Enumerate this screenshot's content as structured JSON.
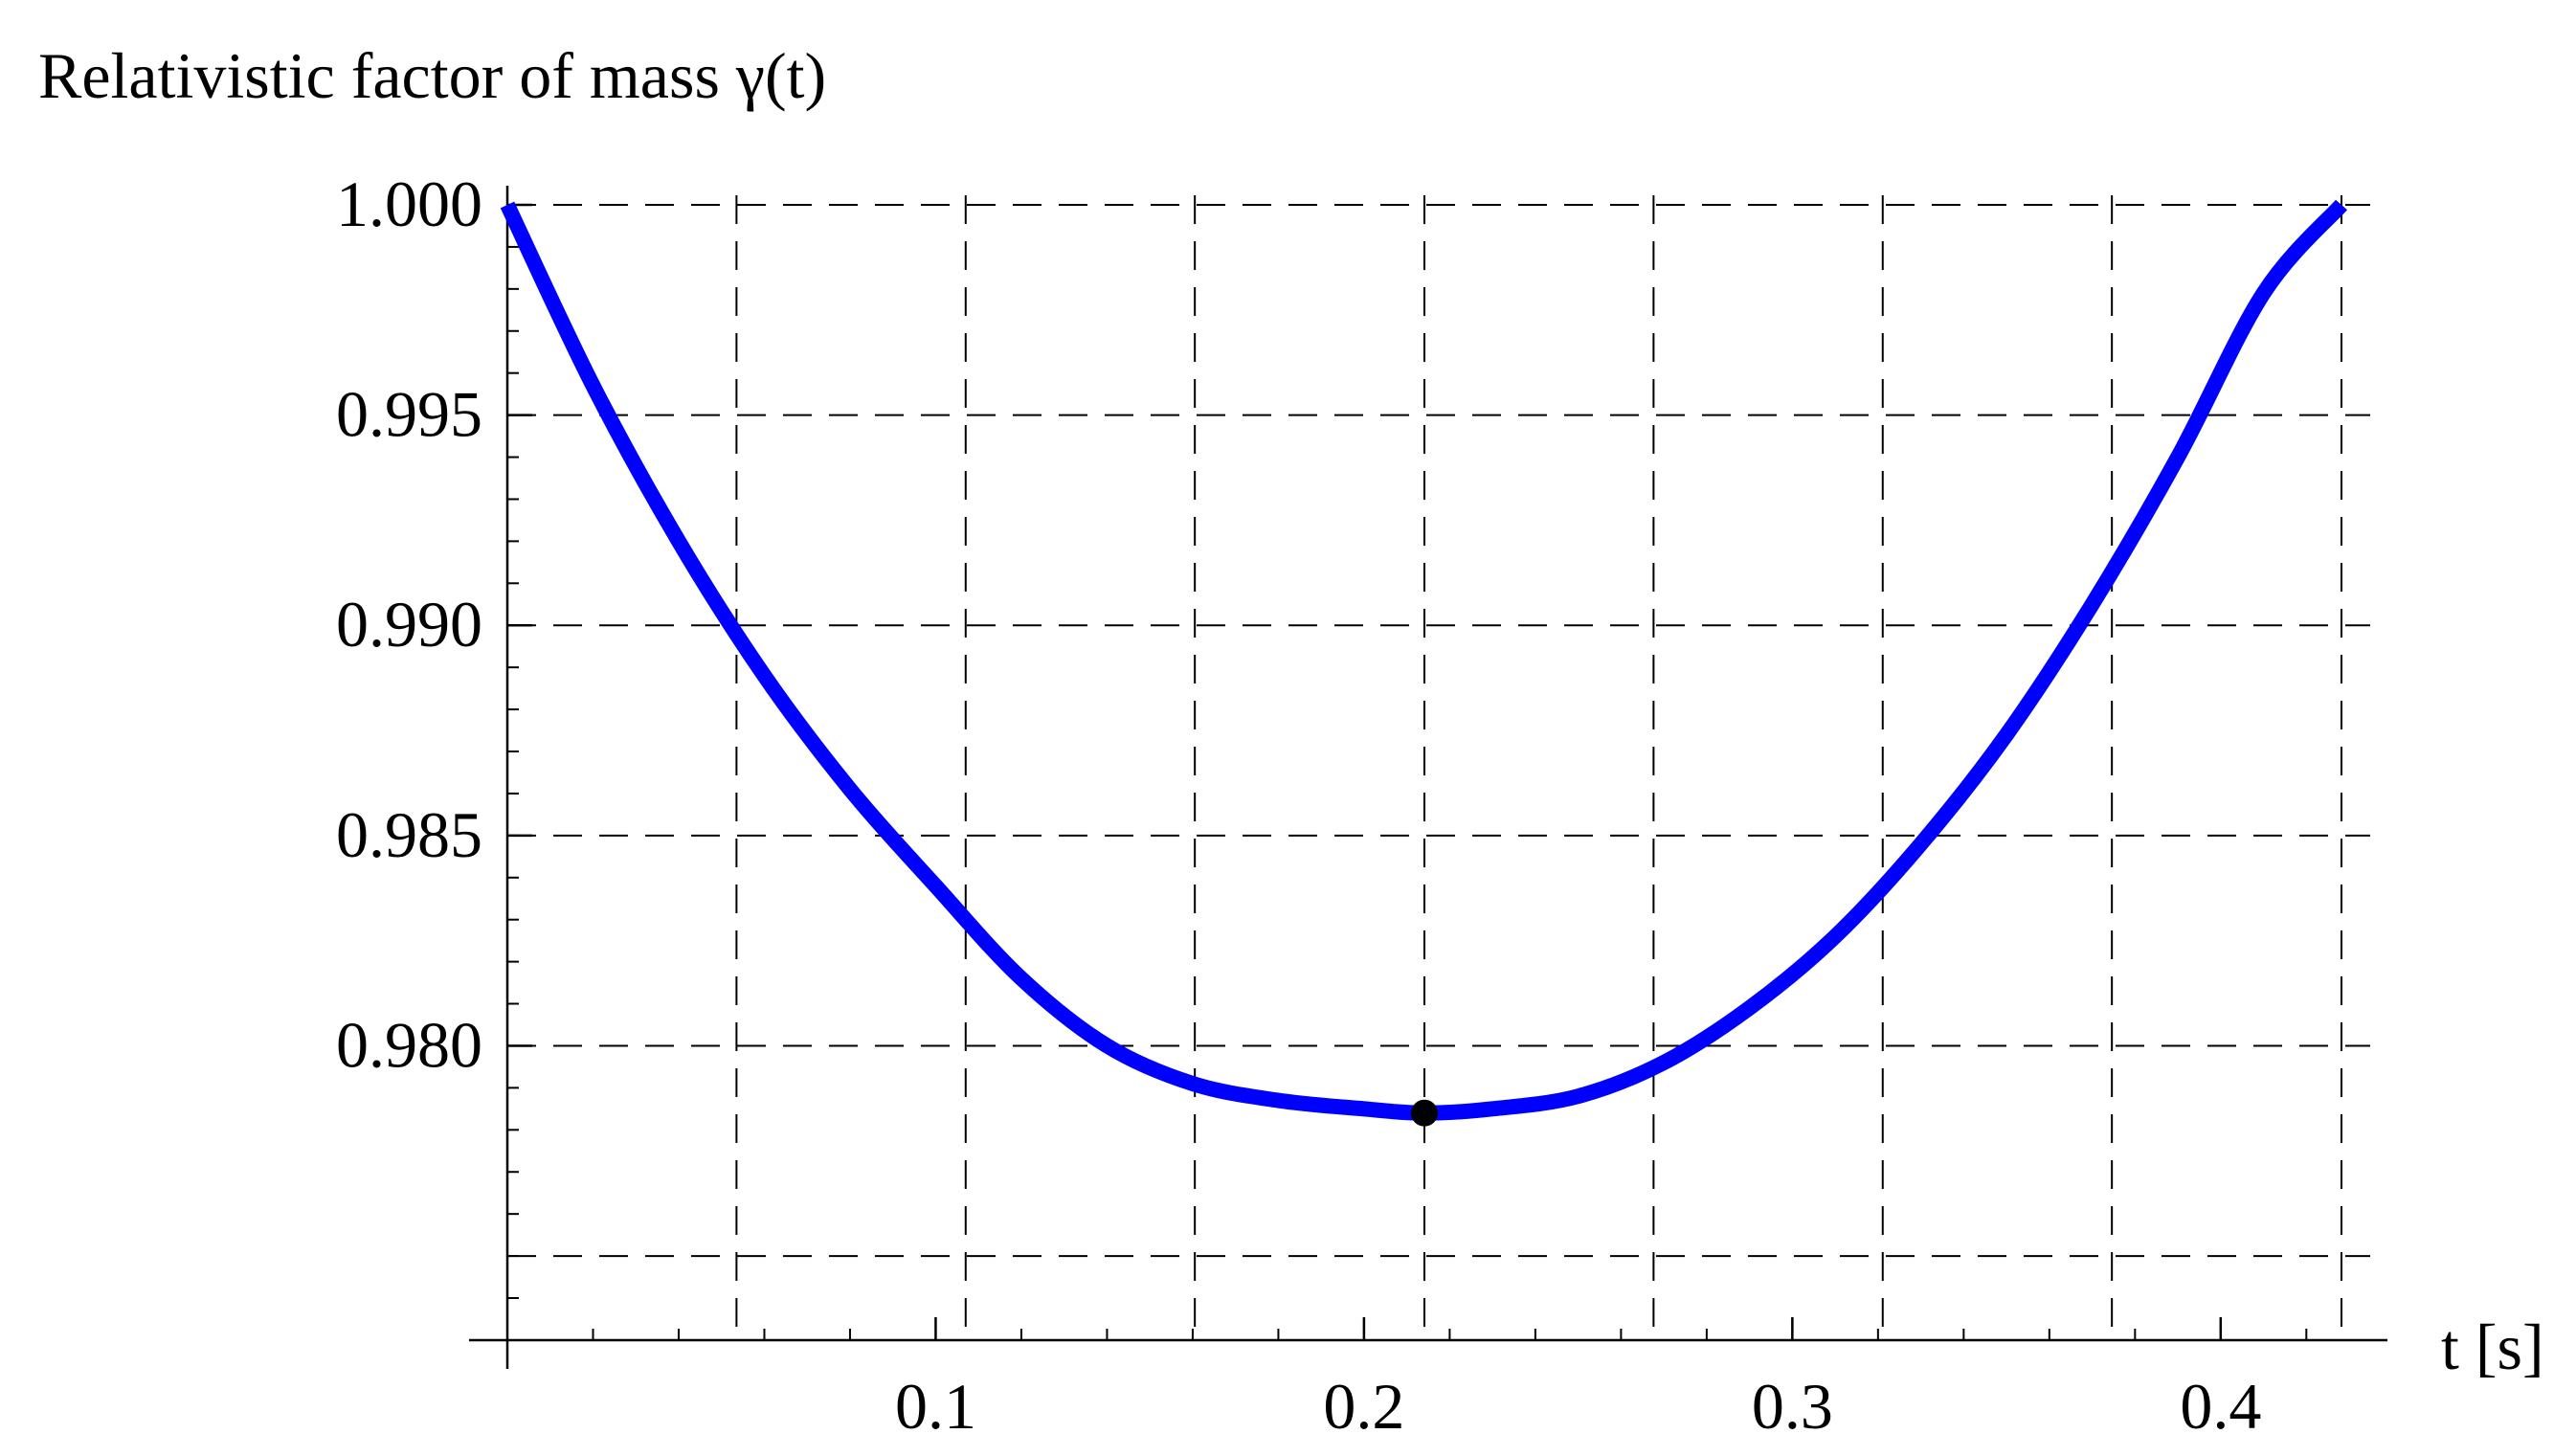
{
  "chart_data": {
    "type": "line",
    "ylabel": "Relativistic factor of mass γ(t)",
    "xlabel": "t [s]",
    "xlim": [
      0.0,
      0.4282
    ],
    "ylim": [
      0.974,
      1.0
    ],
    "grid": true,
    "x_ticks": [
      {
        "value": 0.1,
        "label": "0.1"
      },
      {
        "value": 0.2,
        "label": "0.2"
      },
      {
        "value": 0.3,
        "label": "0.3"
      },
      {
        "value": 0.4,
        "label": "0.4"
      }
    ],
    "y_ticks": [
      {
        "value": 1.0,
        "label": "1.000"
      },
      {
        "value": 0.995,
        "label": "0.995"
      },
      {
        "value": 0.99,
        "label": "0.990"
      },
      {
        "value": 0.985,
        "label": "0.985"
      },
      {
        "value": 0.98,
        "label": "0.980"
      }
    ],
    "grid_x": [
      0.0535,
      0.107,
      0.1605,
      0.2141,
      0.2676,
      0.3211,
      0.3746,
      0.4282
    ],
    "grid_y": [
      1.0,
      0.995,
      0.99,
      0.985,
      0.98,
      0.975
    ],
    "series": [
      {
        "color": "#0000ff",
        "x": [
          0.0,
          0.02,
          0.04,
          0.06,
          0.08,
          0.1,
          0.12,
          0.14,
          0.16,
          0.18,
          0.2,
          0.2141,
          0.23,
          0.25,
          0.27,
          0.29,
          0.31,
          0.33,
          0.35,
          0.37,
          0.39,
          0.41,
          0.4282
        ],
        "y": [
          1.0,
          0.9957,
          0.992,
          0.9888,
          0.9861,
          0.9838,
          0.9816,
          0.98,
          0.9791,
          0.9787,
          0.9785,
          0.9784,
          0.9785,
          0.9788,
          0.9796,
          0.9809,
          0.9826,
          0.9848,
          0.9874,
          0.9905,
          0.994,
          0.9979,
          1.0
        ]
      }
    ],
    "markers": [
      {
        "x": 0.2141,
        "y": 0.9784,
        "color": "#000000"
      }
    ]
  }
}
